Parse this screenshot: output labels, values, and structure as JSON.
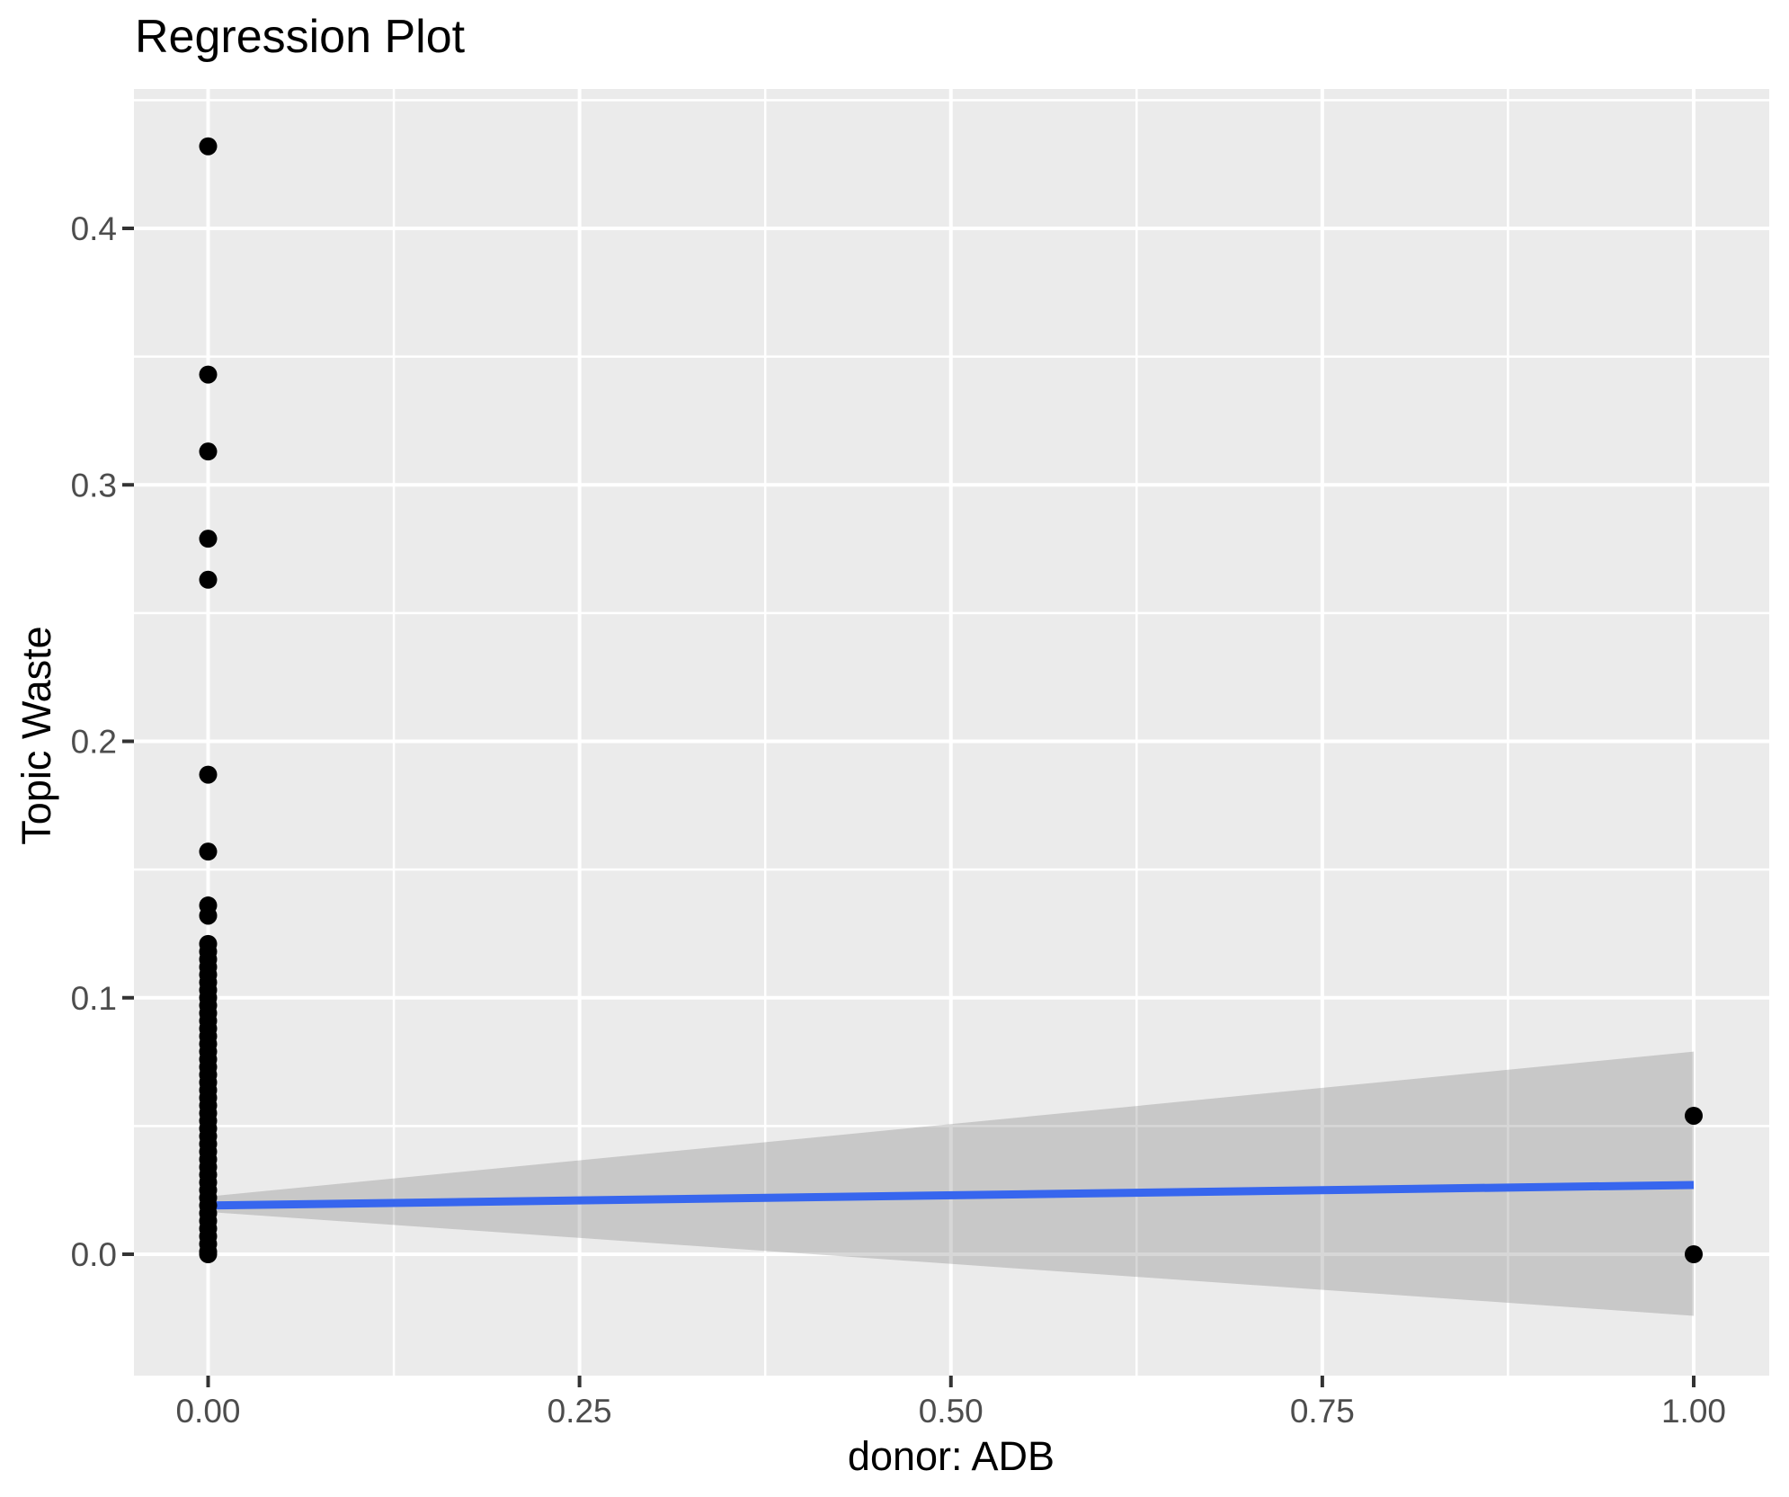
{
  "title": "Regression Plot",
  "chart_data": {
    "type": "scatter",
    "title": "Regression Plot",
    "xlabel": "donor: ADB",
    "ylabel": "Topic Waste",
    "legend_position": "none",
    "xlim": [
      -0.05,
      1.051
    ],
    "ylim": [
      -0.047,
      0.4545
    ],
    "x_ticks": {
      "values": [
        0.0,
        0.25,
        0.5,
        0.75,
        1.0
      ],
      "labels": [
        "0.00",
        "0.25",
        "0.50",
        "0.75",
        "1.00"
      ]
    },
    "y_ticks": {
      "values": [
        0.0,
        0.1,
        0.2,
        0.3,
        0.4
      ],
      "labels": [
        "0.0",
        "0.1",
        "0.2",
        "0.3",
        "0.4"
      ]
    },
    "x_minor_ticks": [
      0.125,
      0.375,
      0.625,
      0.875
    ],
    "y_minor_ticks": [
      0.05,
      0.15,
      0.25,
      0.35,
      0.45
    ],
    "grid": {
      "major": true,
      "minor": true
    },
    "series": [
      {
        "name": "observations",
        "type": "points",
        "color": "#000000",
        "points": [
          [
            0,
            0.432
          ],
          [
            0,
            0.343
          ],
          [
            0,
            0.313
          ],
          [
            0,
            0.279
          ],
          [
            0,
            0.263
          ],
          [
            0,
            0.187
          ],
          [
            0,
            0.157
          ],
          [
            0,
            0.136
          ],
          [
            0,
            0.132
          ],
          [
            0,
            0.121
          ],
          [
            0,
            0.118
          ],
          [
            0,
            0.115
          ],
          [
            0,
            0.112
          ],
          [
            0,
            0.109
          ],
          [
            0,
            0.106
          ],
          [
            0,
            0.103
          ],
          [
            0,
            0.1
          ],
          [
            0,
            0.097
          ],
          [
            0,
            0.094
          ],
          [
            0,
            0.091
          ],
          [
            0,
            0.088
          ],
          [
            0,
            0.085
          ],
          [
            0,
            0.082
          ],
          [
            0,
            0.079
          ],
          [
            0,
            0.076
          ],
          [
            0,
            0.073
          ],
          [
            0,
            0.07
          ],
          [
            0,
            0.067
          ],
          [
            0,
            0.064
          ],
          [
            0,
            0.061
          ],
          [
            0,
            0.058
          ],
          [
            0,
            0.055
          ],
          [
            0,
            0.052
          ],
          [
            0,
            0.049
          ],
          [
            0,
            0.046
          ],
          [
            0,
            0.043
          ],
          [
            0,
            0.04
          ],
          [
            0,
            0.037
          ],
          [
            0,
            0.034
          ],
          [
            0,
            0.031
          ],
          [
            0,
            0.028
          ],
          [
            0,
            0.025
          ],
          [
            0,
            0.022
          ],
          [
            0,
            0.019
          ],
          [
            0,
            0.016
          ],
          [
            0,
            0.013
          ],
          [
            0,
            0.01
          ],
          [
            0,
            0.007
          ],
          [
            0,
            0.004
          ],
          [
            0,
            0.001
          ],
          [
            0,
            0.0
          ],
          [
            1,
            0.054
          ],
          [
            1,
            0.0
          ]
        ]
      },
      {
        "name": "regression-fit",
        "type": "line",
        "color": "#3766EE",
        "x": [
          0,
          1
        ],
        "y": [
          0.019,
          0.027
        ]
      },
      {
        "name": "confidence-band",
        "type": "band",
        "color": "#666666",
        "opacity": 0.26,
        "x": [
          0,
          1
        ],
        "upper": [
          0.0225,
          0.079
        ],
        "lower": [
          0.0165,
          -0.024
        ]
      }
    ],
    "colors": {
      "panel": "#EBEBEB",
      "grid": "#FFFFFF",
      "point": "#000000",
      "line": "#3766EE",
      "tick_text": "#4D4D4D",
      "tick_mark": "#333333",
      "text": "#000000"
    }
  }
}
